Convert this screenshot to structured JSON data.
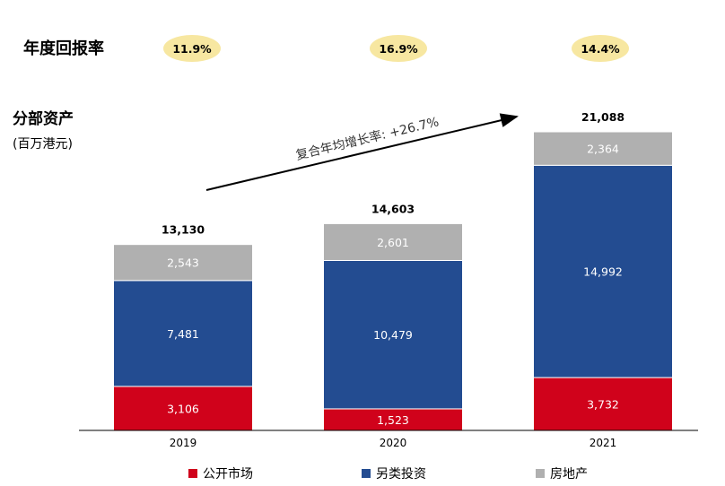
{
  "returns": {
    "title": "年度回报率",
    "values": [
      "11.9%",
      "16.9%",
      "14.4%"
    ],
    "pill_color": "#f7e7a1"
  },
  "segment": {
    "title": "分部资产",
    "unit": "(百万港元)"
  },
  "cagr_label": "复合年均增长率: +26.7%",
  "chart_data": {
    "type": "bar",
    "stacked": true,
    "categories": [
      "2019",
      "2020",
      "2021"
    ],
    "series": [
      {
        "name": "公开市场",
        "values": [
          3106,
          1523,
          3732
        ],
        "labels": [
          "3,106",
          "1,523",
          "3,732"
        ],
        "color": "#d0021b"
      },
      {
        "name": "另类投资",
        "values": [
          7481,
          10479,
          14992
        ],
        "labels": [
          "7,481",
          "10,479",
          "14,992"
        ],
        "color": "#234c91"
      },
      {
        "name": "房地产",
        "values": [
          2543,
          2601,
          2364
        ],
        "labels": [
          "2,543",
          "2,601",
          "2,364"
        ],
        "color": "#b0b0b0"
      }
    ],
    "totals": [
      "13,130",
      "14,603",
      "21,088"
    ],
    "ylim": [
      0,
      21088
    ]
  },
  "legend": [
    {
      "label": "公开市场",
      "color": "#d0021b"
    },
    {
      "label": "另类投资",
      "color": "#234c91"
    },
    {
      "label": "房地产",
      "color": "#b0b0b0"
    }
  ]
}
